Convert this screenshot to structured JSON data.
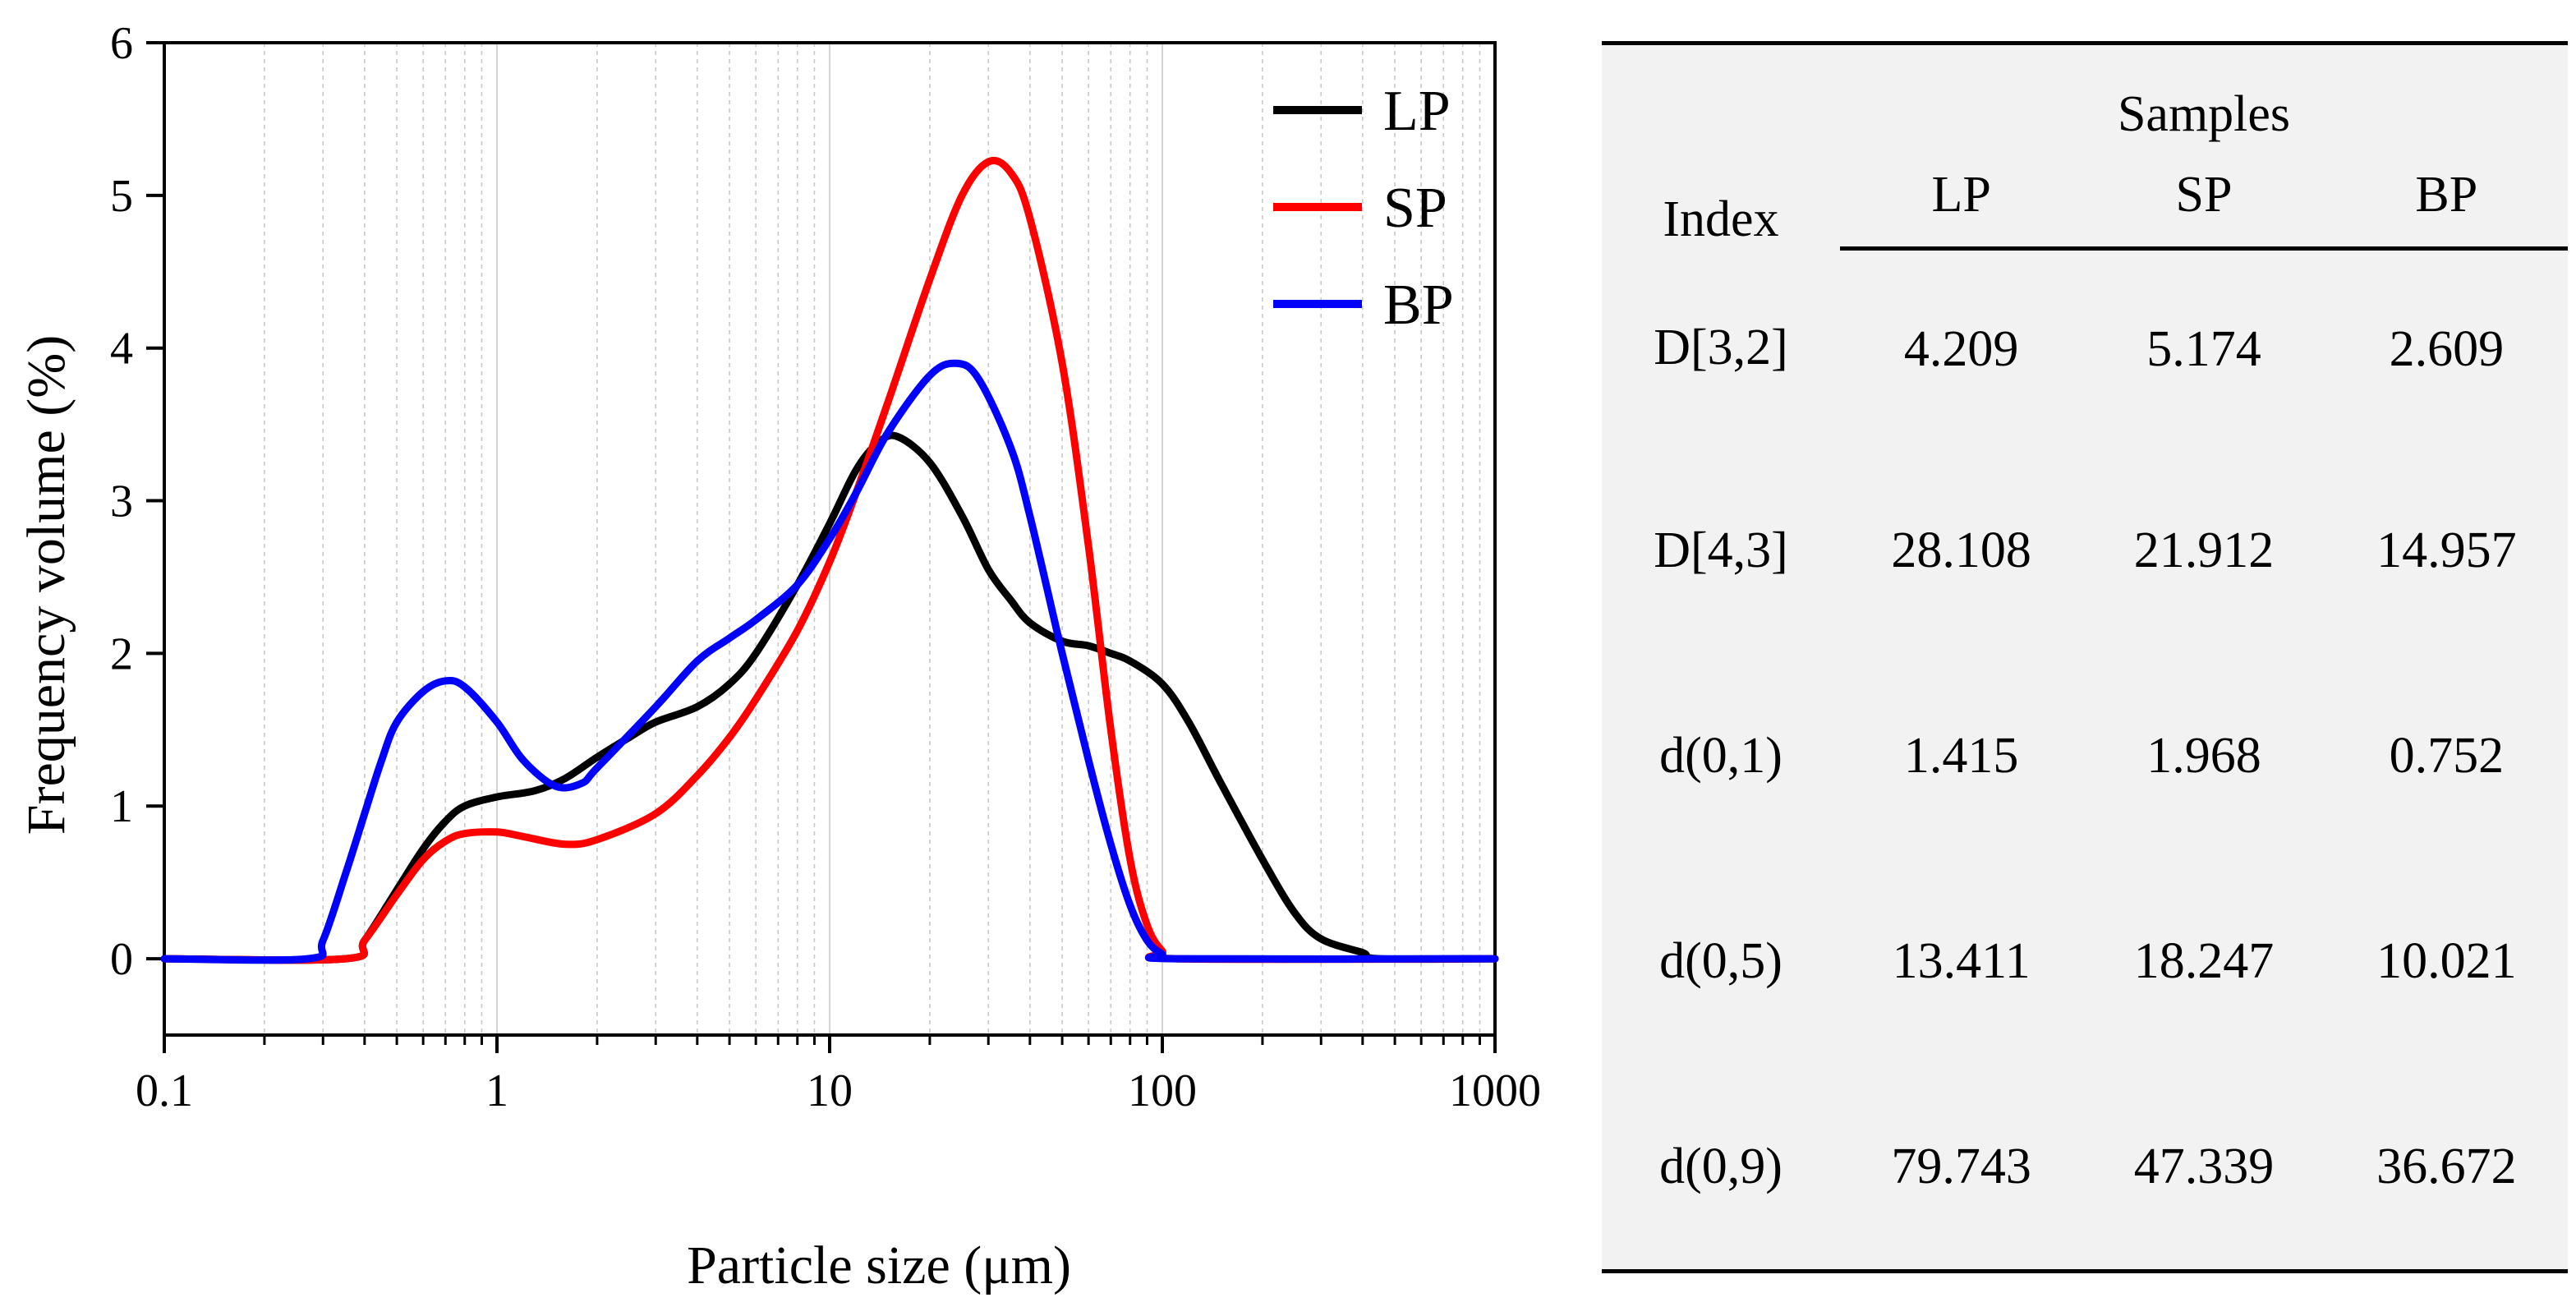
{
  "chart_data": {
    "type": "line",
    "xscale": "log",
    "xlim": [
      0.1,
      1000
    ],
    "ylim": [
      -0.5,
      6
    ],
    "xlabel": "Particle size (μm)",
    "ylabel": "Frequency volume (%)",
    "x_ticks": [
      0.1,
      1,
      10,
      100,
      1000
    ],
    "x_tick_labels": [
      "0.1",
      "1",
      "10",
      "100",
      "1000"
    ],
    "y_ticks": [
      0,
      1,
      2,
      3,
      4,
      5,
      6
    ],
    "y_tick_labels": [
      "0",
      "1",
      "2",
      "3",
      "4",
      "5",
      "6"
    ],
    "grid": "vertical minor log gridlines",
    "legend_position": "top-right",
    "series": [
      {
        "name": "LP",
        "color": "#000000",
        "points": [
          [
            0.1,
            0
          ],
          [
            0.35,
            0
          ],
          [
            0.4,
            0.12
          ],
          [
            0.5,
            0.45
          ],
          [
            0.6,
            0.72
          ],
          [
            0.7,
            0.9
          ],
          [
            0.8,
            1.0
          ],
          [
            1,
            1.06
          ],
          [
            1.3,
            1.1
          ],
          [
            1.6,
            1.18
          ],
          [
            2,
            1.32
          ],
          [
            2.5,
            1.45
          ],
          [
            3,
            1.55
          ],
          [
            4,
            1.65
          ],
          [
            5,
            1.8
          ],
          [
            6,
            2.0
          ],
          [
            8,
            2.45
          ],
          [
            10,
            2.85
          ],
          [
            12,
            3.2
          ],
          [
            14,
            3.38
          ],
          [
            16,
            3.42
          ],
          [
            20,
            3.25
          ],
          [
            25,
            2.9
          ],
          [
            30,
            2.55
          ],
          [
            35,
            2.35
          ],
          [
            40,
            2.2
          ],
          [
            50,
            2.08
          ],
          [
            60,
            2.05
          ],
          [
            70,
            2.0
          ],
          [
            80,
            1.95
          ],
          [
            100,
            1.8
          ],
          [
            120,
            1.55
          ],
          [
            150,
            1.15
          ],
          [
            200,
            0.65
          ],
          [
            250,
            0.3
          ],
          [
            300,
            0.13
          ],
          [
            400,
            0.04
          ],
          [
            450,
            0
          ],
          [
            1000,
            0
          ]
        ]
      },
      {
        "name": "SP",
        "color": "#ff0000",
        "points": [
          [
            0.1,
            0
          ],
          [
            0.35,
            0
          ],
          [
            0.4,
            0.12
          ],
          [
            0.5,
            0.42
          ],
          [
            0.6,
            0.65
          ],
          [
            0.7,
            0.77
          ],
          [
            0.8,
            0.82
          ],
          [
            1,
            0.83
          ],
          [
            1.2,
            0.8
          ],
          [
            1.6,
            0.75
          ],
          [
            2,
            0.78
          ],
          [
            3,
            0.95
          ],
          [
            4,
            1.2
          ],
          [
            5,
            1.45
          ],
          [
            6,
            1.7
          ],
          [
            8,
            2.15
          ],
          [
            10,
            2.6
          ],
          [
            12,
            3.05
          ],
          [
            15,
            3.65
          ],
          [
            20,
            4.45
          ],
          [
            25,
            5.0
          ],
          [
            30,
            5.22
          ],
          [
            35,
            5.15
          ],
          [
            40,
            4.85
          ],
          [
            50,
            3.9
          ],
          [
            60,
            2.7
          ],
          [
            70,
            1.5
          ],
          [
            80,
            0.65
          ],
          [
            90,
            0.22
          ],
          [
            100,
            0.05
          ],
          [
            110,
            0
          ],
          [
            1000,
            0
          ]
        ]
      },
      {
        "name": "BP",
        "color": "#0000ff",
        "points": [
          [
            0.1,
            0
          ],
          [
            0.27,
            0
          ],
          [
            0.3,
            0.12
          ],
          [
            0.35,
            0.55
          ],
          [
            0.4,
            0.95
          ],
          [
            0.45,
            1.3
          ],
          [
            0.5,
            1.55
          ],
          [
            0.6,
            1.75
          ],
          [
            0.7,
            1.82
          ],
          [
            0.8,
            1.78
          ],
          [
            1,
            1.55
          ],
          [
            1.2,
            1.3
          ],
          [
            1.5,
            1.13
          ],
          [
            1.8,
            1.15
          ],
          [
            2,
            1.25
          ],
          [
            3,
            1.65
          ],
          [
            4,
            1.95
          ],
          [
            5,
            2.1
          ],
          [
            6,
            2.22
          ],
          [
            8,
            2.45
          ],
          [
            10,
            2.75
          ],
          [
            12,
            3.05
          ],
          [
            15,
            3.45
          ],
          [
            20,
            3.82
          ],
          [
            24,
            3.9
          ],
          [
            28,
            3.8
          ],
          [
            35,
            3.35
          ],
          [
            40,
            2.9
          ],
          [
            50,
            2.0
          ],
          [
            60,
            1.3
          ],
          [
            70,
            0.75
          ],
          [
            80,
            0.35
          ],
          [
            90,
            0.12
          ],
          [
            100,
            0.03
          ],
          [
            110,
            0
          ],
          [
            1000,
            0
          ]
        ]
      }
    ]
  },
  "table": {
    "index_header": "Index",
    "samples_header": "Samples",
    "columns": [
      "LP",
      "SP",
      "BP"
    ],
    "rows": [
      {
        "index": "D[3,2]",
        "values": [
          "4.209",
          "5.174",
          "2.609"
        ]
      },
      {
        "index": "D[4,3]",
        "values": [
          "28.108",
          "21.912",
          "14.957"
        ]
      },
      {
        "index": "d(0,1)",
        "values": [
          "1.415",
          "1.968",
          "0.752"
        ]
      },
      {
        "index": "d(0,5)",
        "values": [
          "13.411",
          "18.247",
          "10.021"
        ]
      },
      {
        "index": "d(0,9)",
        "values": [
          "79.743",
          "47.339",
          "36.672"
        ]
      }
    ]
  }
}
